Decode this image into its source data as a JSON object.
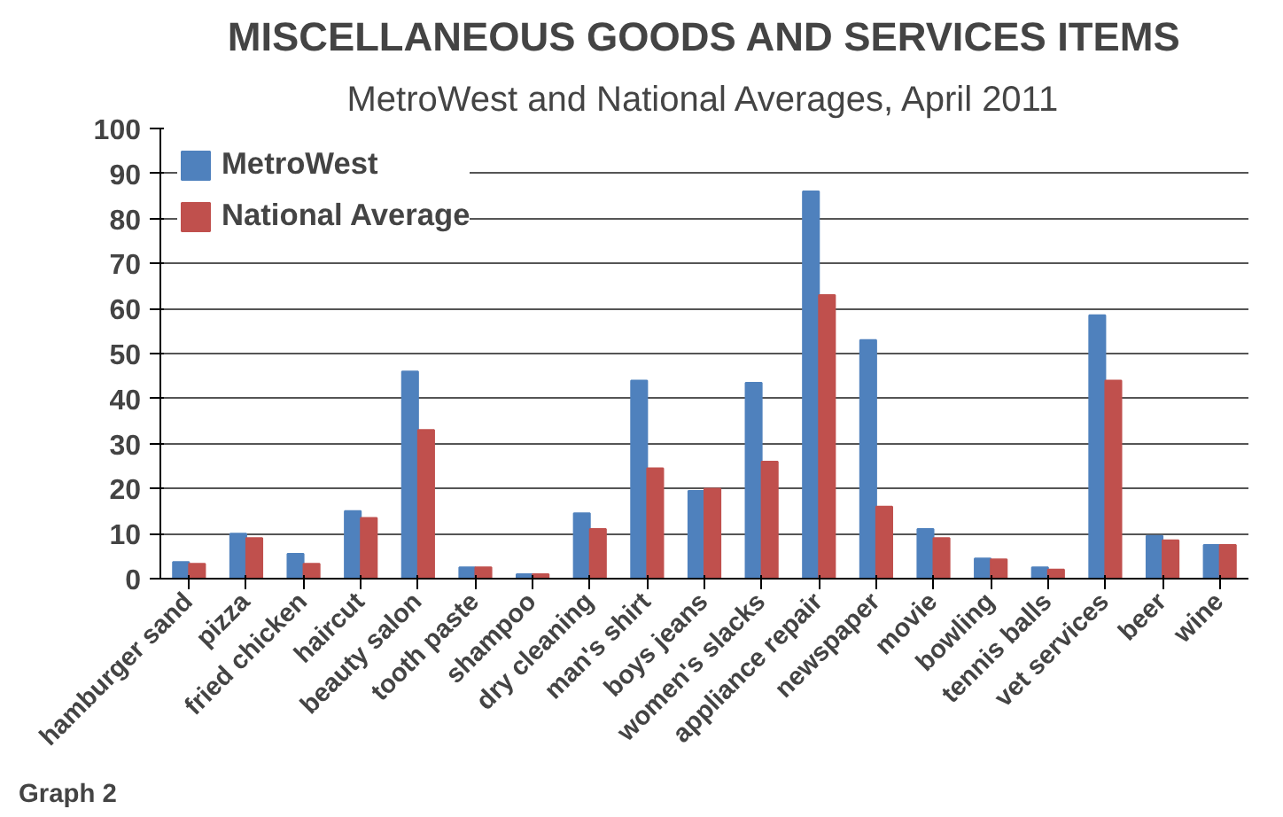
{
  "chart_data": {
    "type": "bar",
    "title": "MISCELLANEOUS GOODS AND SERVICES ITEMS",
    "subtitle": "MetroWest and National Averages, April 2011",
    "categories": [
      "hamburger sand",
      "pizza",
      "fried chicken",
      "haircut",
      "beauty salon",
      "tooth paste",
      "shampoo",
      "dry cleaning",
      "man's shirt",
      "boys jeans",
      "women's slacks",
      "appliance repair",
      "newspaper",
      "movie",
      "bowling",
      "tennis balls",
      "vet services",
      "beer",
      "wine"
    ],
    "series": [
      {
        "name": "MetroWest",
        "color": "#4f81bd",
        "values": [
          3.7,
          10,
          5.5,
          15,
          46,
          2.5,
          1,
          14.5,
          44,
          19.5,
          43.5,
          86,
          53,
          11,
          4.5,
          2.5,
          58.5,
          9.5,
          7.5
        ]
      },
      {
        "name": "National Average",
        "color": "#c0504d",
        "values": [
          3.3,
          9,
          3.3,
          13.5,
          33,
          2.5,
          1,
          11,
          24.5,
          20,
          26,
          63,
          16,
          9,
          4.3,
          2,
          44,
          8.5,
          7.5
        ]
      }
    ],
    "ylim": [
      0,
      100
    ],
    "yticks": [
      0,
      10,
      20,
      30,
      40,
      50,
      60,
      70,
      80,
      90,
      100
    ],
    "grid": "y",
    "legend": "top left",
    "annotations": [
      "Graph 2"
    ]
  }
}
